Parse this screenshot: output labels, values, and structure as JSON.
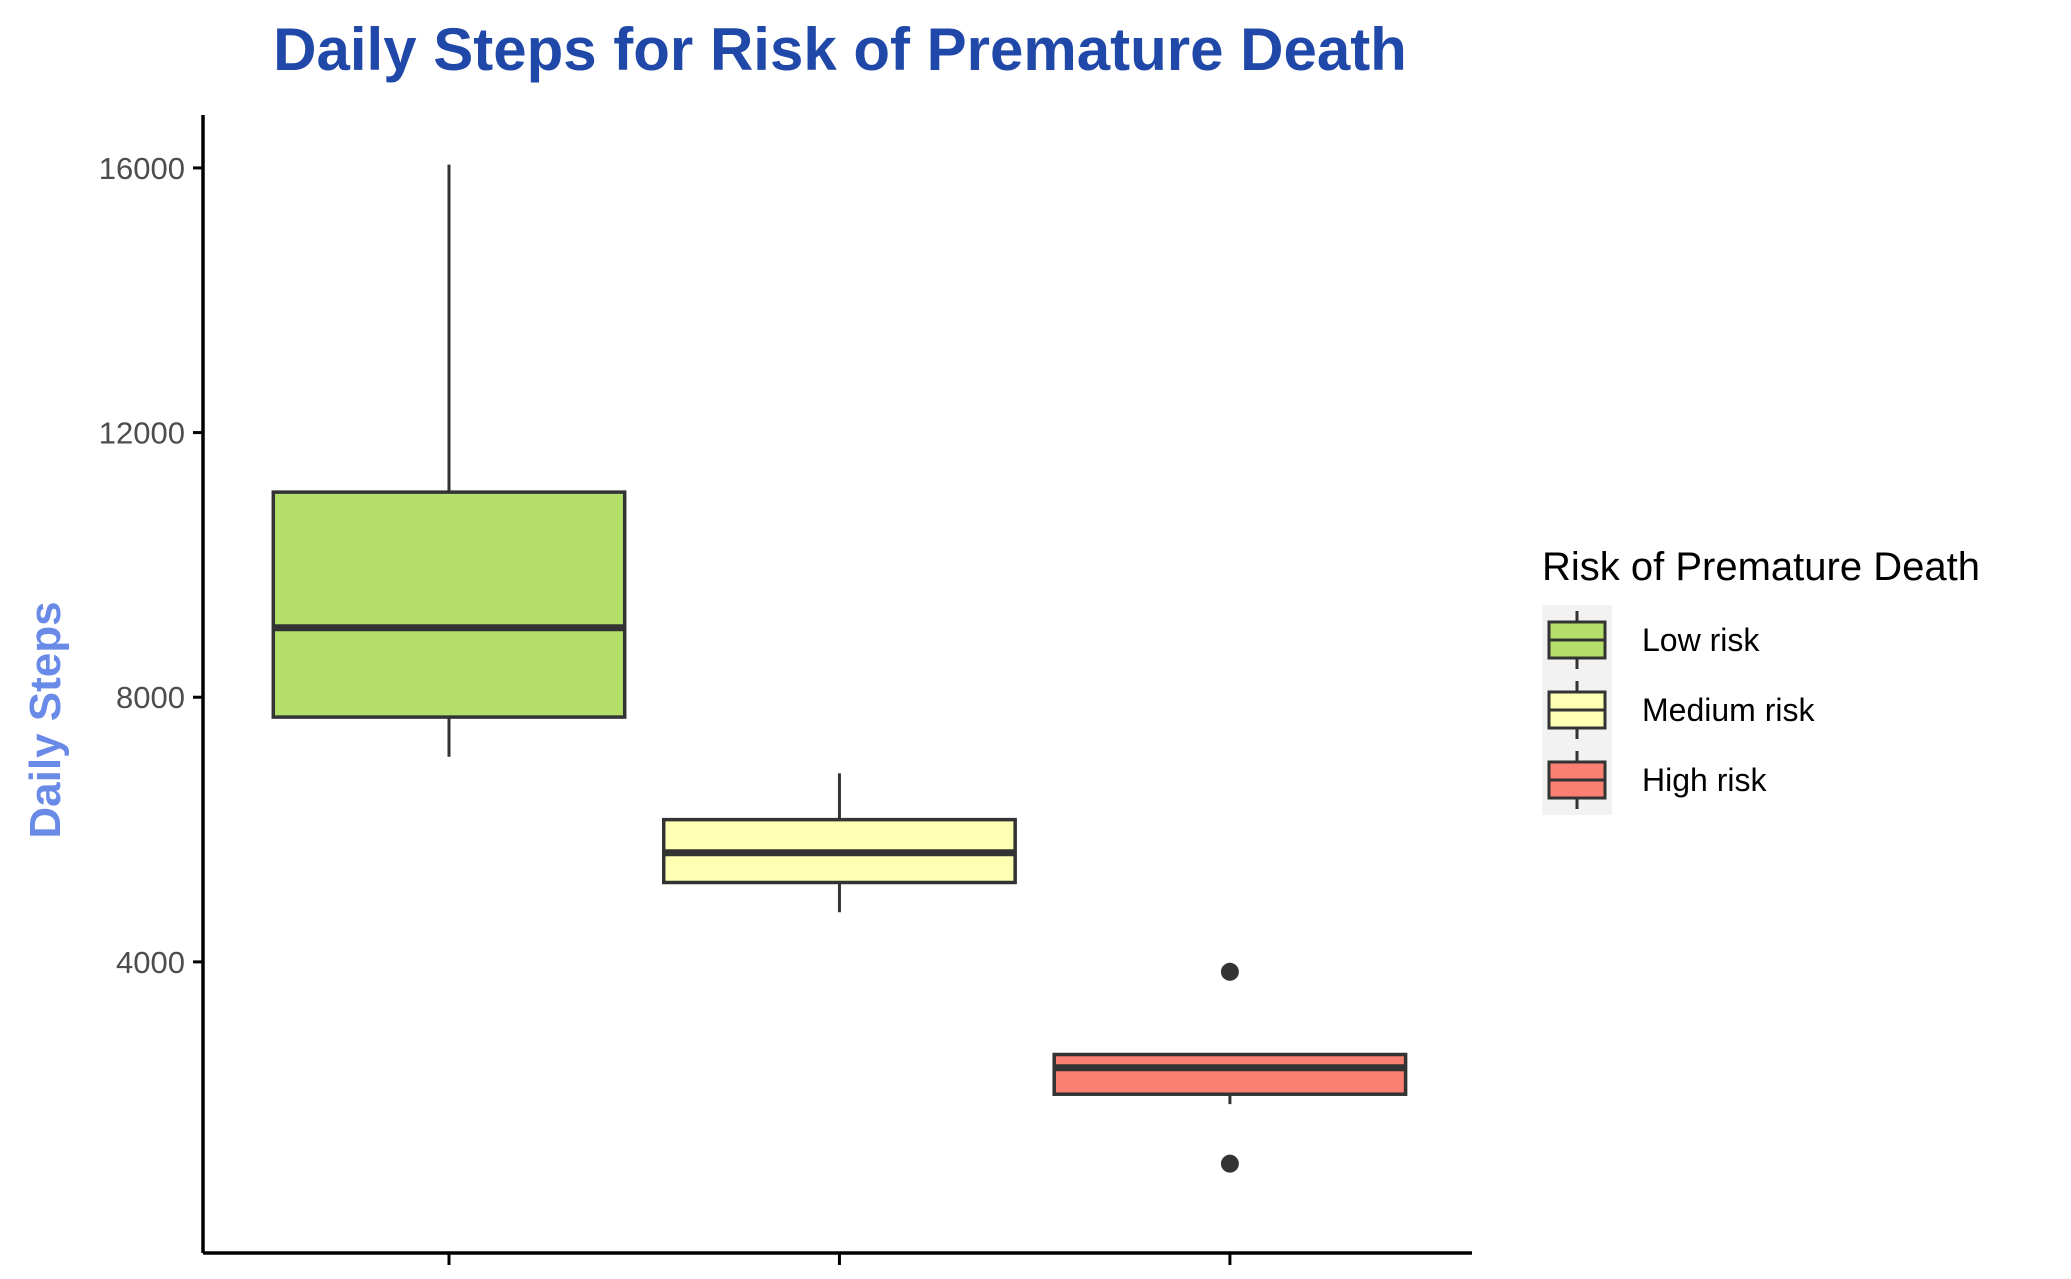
{
  "chart_data": {
    "type": "boxplot",
    "title": "Daily Steps for Risk of Premature Death",
    "xlabel": "",
    "ylabel": "Daily Steps",
    "ylim": [
      -400,
      16800
    ],
    "yticks": [
      "4000",
      "8000",
      "12000",
      "16000"
    ],
    "grid": false,
    "legend_position": "right",
    "legend_title": "Risk of Premature Death",
    "categories": [
      "Low risk",
      "Medium risk",
      "High risk"
    ],
    "boxes": [
      {
        "name": "Low risk",
        "whisker_low": 7100,
        "q1": 7700,
        "median": 9050,
        "q3": 11100,
        "whisker_high": 16050,
        "outliers": [],
        "color": "#b3df6a"
      },
      {
        "name": "Medium risk",
        "whisker_low": 4750,
        "q1": 5200,
        "median": 5650,
        "q3": 6150,
        "whisker_high": 6850,
        "outliers": [],
        "color": "#ffffb3"
      },
      {
        "name": "High risk",
        "whisker_low": 1850,
        "q1": 2000,
        "median": 2400,
        "q3": 2600,
        "whisker_high": 2600,
        "outliers": [
          3850,
          950
        ],
        "color": "#fa8072"
      }
    ]
  },
  "colors": {
    "title": "#2048a8",
    "ylabel": "#6a8ae8",
    "axis": "#000000",
    "box_stroke": "#333333",
    "tick_label": "#4d4d4d",
    "legend_key_bg": "#f2f2f2"
  }
}
